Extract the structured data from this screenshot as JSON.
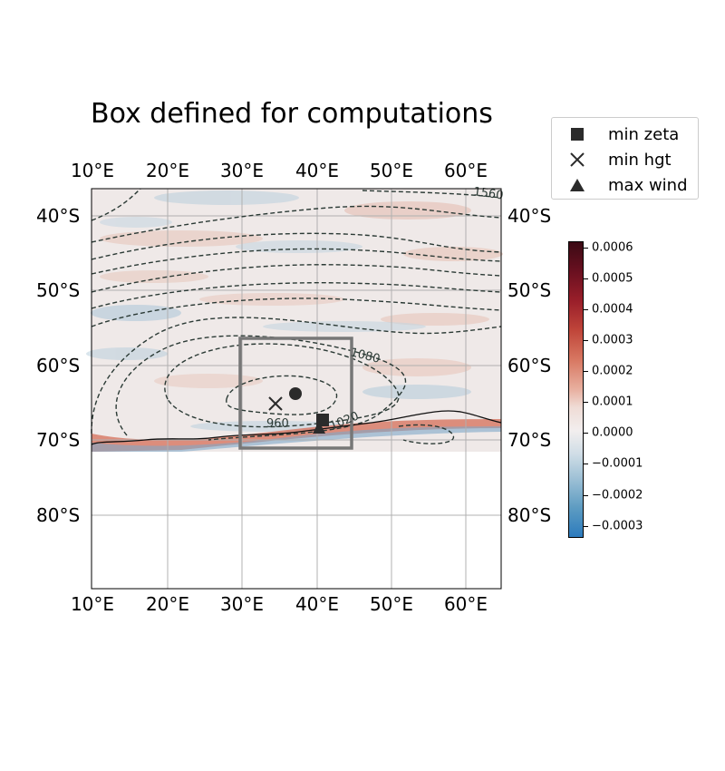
{
  "title": "Box defined for computations",
  "lon_ticks": [
    "10°E",
    "20°E",
    "30°E",
    "40°E",
    "50°E",
    "60°E"
  ],
  "lat_ticks": [
    "40°S",
    "50°S",
    "60°S",
    "70°S",
    "80°S"
  ],
  "contour_labels": [
    "1560",
    "1080",
    "1020",
    "960"
  ],
  "legend": {
    "min_zeta": "min zeta",
    "min_hgt": "min hgt",
    "max_wind": "max wind"
  },
  "colorbar": {
    "ticks": [
      "0.0006",
      "0.0005",
      "0.0004",
      "0.0003",
      "0.0002",
      "0.0001",
      "0.0000",
      "−0.0001",
      "−0.0002",
      "−0.0003"
    ]
  },
  "colors": {
    "contour": "#2b3a35",
    "box": "#777777",
    "marker": "#2b2b2b",
    "positive": "#c0463a",
    "negative": "#2c7bbd"
  }
}
